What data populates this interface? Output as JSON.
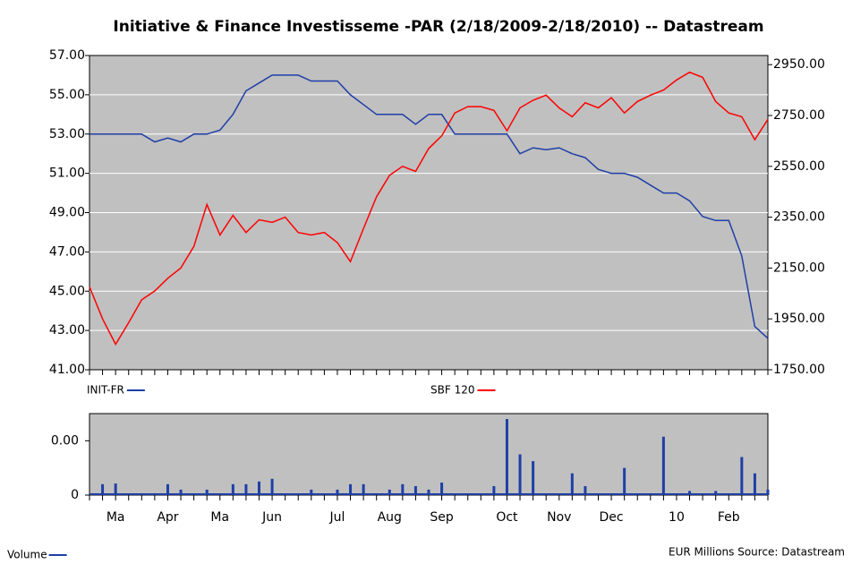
{
  "chart_data": [
    {
      "type": "line",
      "title": "Initiative & Finance Investisseme -PAR (2/18/2009-2/18/2010) -- Datastream",
      "ylim": [
        41,
        57
      ],
      "yticks": [
        {
          "value": 41,
          "label": "41.00"
        },
        {
          "value": 43,
          "label": "43.00"
        },
        {
          "value": 45,
          "label": "45.00"
        },
        {
          "value": 47,
          "label": "47.00"
        },
        {
          "value": 49,
          "label": "49.00"
        },
        {
          "value": 51,
          "label": "51.00"
        },
        {
          "value": 53,
          "label": "53.00"
        },
        {
          "value": 55,
          "label": "55.00"
        },
        {
          "value": 57,
          "label": "57.00"
        }
      ],
      "y2lim": [
        1750,
        2986
      ],
      "y2ticks": [
        {
          "value": 1750,
          "label": "1750.00"
        },
        {
          "value": 1950,
          "label": "1950.00"
        },
        {
          "value": 2150,
          "label": "2150.00"
        },
        {
          "value": 2350,
          "label": "2350.00"
        },
        {
          "value": 2550,
          "label": "2550.00"
        },
        {
          "value": 2750,
          "label": "2750.00"
        },
        {
          "value": 2950,
          "label": "2950.00"
        }
      ],
      "grid": true,
      "series": [
        {
          "name": "INIT-FR",
          "color": "#1f3fa6",
          "values": [
            53.0,
            53.0,
            53.0,
            53.0,
            53.0,
            52.6,
            52.8,
            52.6,
            53.0,
            53.0,
            53.2,
            54.0,
            55.2,
            55.6,
            56.0,
            56.0,
            56.0,
            55.7,
            55.7,
            55.7,
            55.0,
            54.5,
            54.0,
            54.0,
            54.0,
            53.5,
            54.0,
            54.0,
            53.0,
            53.0,
            53.0,
            53.0,
            53.0,
            52.0,
            52.3,
            52.2,
            52.3,
            52.0,
            51.8,
            51.2,
            51.0,
            51.0,
            50.8,
            50.4,
            50.0,
            50.0,
            49.6,
            48.8,
            48.6,
            48.6,
            46.8,
            43.2,
            42.6
          ]
        },
        {
          "name": "SBF 120",
          "color": "#ff0000",
          "axis": "y2",
          "values": [
            2076,
            1950,
            1850,
            1935,
            2025,
            2060,
            2110,
            2150,
            2235,
            2400,
            2280,
            2357,
            2290,
            2340,
            2330,
            2350,
            2290,
            2280,
            2290,
            2250,
            2175,
            2305,
            2430,
            2515,
            2550,
            2530,
            2620,
            2670,
            2760,
            2785,
            2785,
            2770,
            2690,
            2780,
            2810,
            2830,
            2780,
            2745,
            2800,
            2780,
            2820,
            2760,
            2805,
            2830,
            2850,
            2890,
            2920,
            2900,
            2805,
            2760,
            2745,
            2655,
            2735
          ]
        }
      ]
    },
    {
      "type": "bar",
      "categories": [
        null,
        null,
        "Ma",
        null,
        null,
        null,
        "Apr",
        null,
        null,
        null,
        "Ma",
        null,
        null,
        null,
        "Jun",
        null,
        null,
        null,
        null,
        "Jul",
        null,
        null,
        null,
        "Aug",
        null,
        null,
        null,
        "Sep",
        null,
        null,
        null,
        null,
        "Oct",
        null,
        null,
        null,
        "Nov",
        null,
        null,
        null,
        "Dec",
        null,
        null,
        null,
        null,
        "10",
        null,
        null,
        null,
        "Feb",
        null,
        null,
        null
      ],
      "ylim": [
        0,
        0.006
      ],
      "yticks": [
        0,
        {
          "value": 0.004,
          "label": "0.00"
        }
      ],
      "series": [
        {
          "name": "Volume",
          "color": "#1f3fa6",
          "values": [
            0,
            0.0008,
            0.00085,
            0,
            0,
            0,
            0.0008,
            0.0004,
            0,
            0.0004,
            0,
            0.0008,
            0.0008,
            0.001,
            0.0012,
            0,
            0,
            0.0004,
            0,
            0.0004,
            0.0008,
            0.0008,
            0,
            0.0004,
            0.0008,
            0.00066,
            0.0004,
            0.00092,
            0,
            0,
            0,
            0.00066,
            0.0056,
            0.003,
            0.0025,
            0,
            0,
            0.0016,
            0.00066,
            0,
            0,
            0.002,
            0,
            0,
            0.0043,
            0,
            0.0003,
            0,
            0.0003,
            0,
            0.0028,
            0.0016,
            0.0004
          ]
        }
      ],
      "source": "EUR Millions Source: Datastream"
    }
  ]
}
